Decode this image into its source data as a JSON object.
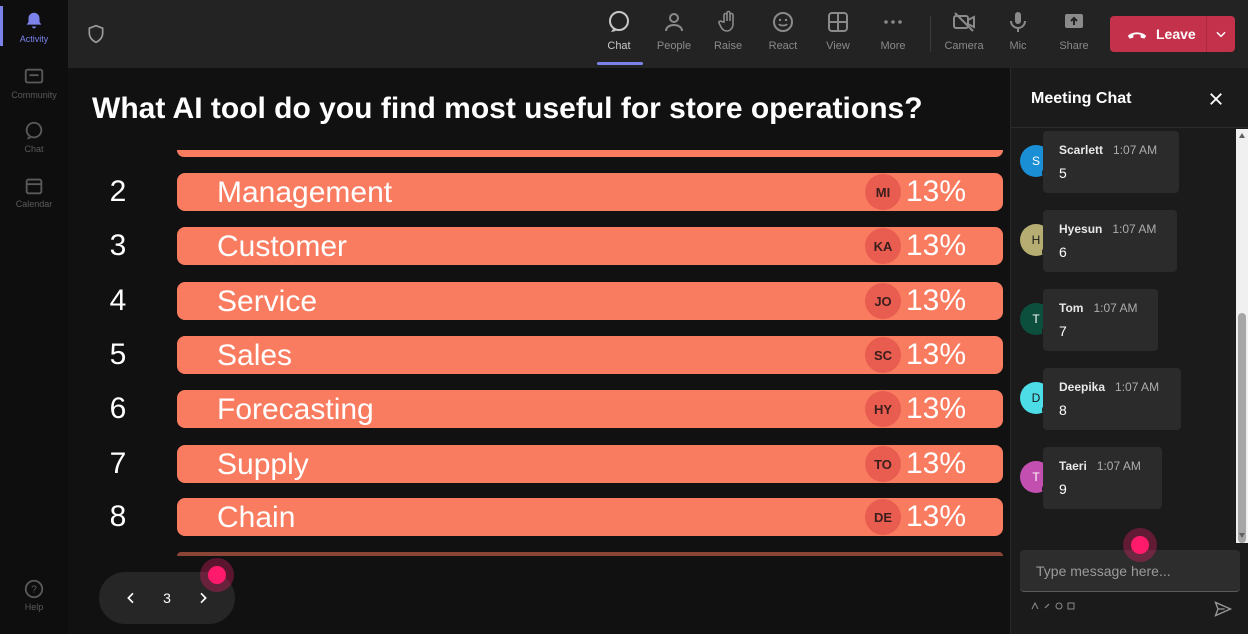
{
  "rail": {
    "items": [
      {
        "label": "Activity",
        "icon": "bell-icon",
        "active": true
      },
      {
        "label": "Community",
        "icon": "community-icon"
      },
      {
        "label": "Chat",
        "icon": "chat-icon"
      },
      {
        "label": "Calendar",
        "icon": "calendar-icon"
      }
    ],
    "help_label": "Help"
  },
  "toolbar": {
    "chat": "Chat",
    "people": "People",
    "raise": "Raise",
    "react": "React",
    "view": "View",
    "more": "More",
    "camera": "Camera",
    "mic": "Mic",
    "share": "Share",
    "leave": "Leave"
  },
  "poll": {
    "question": "What AI tool do you find most useful for store operations?",
    "rows": [
      {
        "rank": "2",
        "label": "Management",
        "initials": "MI",
        "percent": "13%"
      },
      {
        "rank": "3",
        "label": "Customer",
        "initials": "KA",
        "percent": "13%"
      },
      {
        "rank": "4",
        "label": "Service",
        "initials": "JO",
        "percent": "13%"
      },
      {
        "rank": "5",
        "label": "Sales",
        "initials": "SC",
        "percent": "13%"
      },
      {
        "rank": "6",
        "label": "Forecasting",
        "initials": "HY",
        "percent": "13%"
      },
      {
        "rank": "7",
        "label": "Supply",
        "initials": "TO",
        "percent": "13%"
      },
      {
        "rank": "8",
        "label": "Chain",
        "initials": "DE",
        "percent": "13%"
      }
    ]
  },
  "pager": {
    "page": "3"
  },
  "chat": {
    "title": "Meeting Chat",
    "messages": [
      {
        "initial": "S",
        "name": "Scarlett",
        "time": "1:07 AM",
        "text": "5",
        "color": "#1b8fd6"
      },
      {
        "initial": "H",
        "name": "Hyesun",
        "time": "1:07 AM",
        "text": "6",
        "color": "#b5ad72"
      },
      {
        "initial": "T",
        "name": "Tom",
        "time": "1:07 AM",
        "text": "7",
        "color": "#0c4f3d"
      },
      {
        "initial": "D",
        "name": "Deepika",
        "time": "1:07 AM",
        "text": "8",
        "color": "#4cdde6"
      },
      {
        "initial": "T",
        "name": "Taeri",
        "time": "1:07 AM",
        "text": "9",
        "color": "#c34fb0"
      }
    ],
    "input_placeholder": "Type message here..."
  },
  "colors": {
    "bar": "#f97c60",
    "avatar_chip": "#e85d4f",
    "leave": "#c4314b",
    "accent": "#7b83eb",
    "cursor": "#ff1a6b"
  }
}
